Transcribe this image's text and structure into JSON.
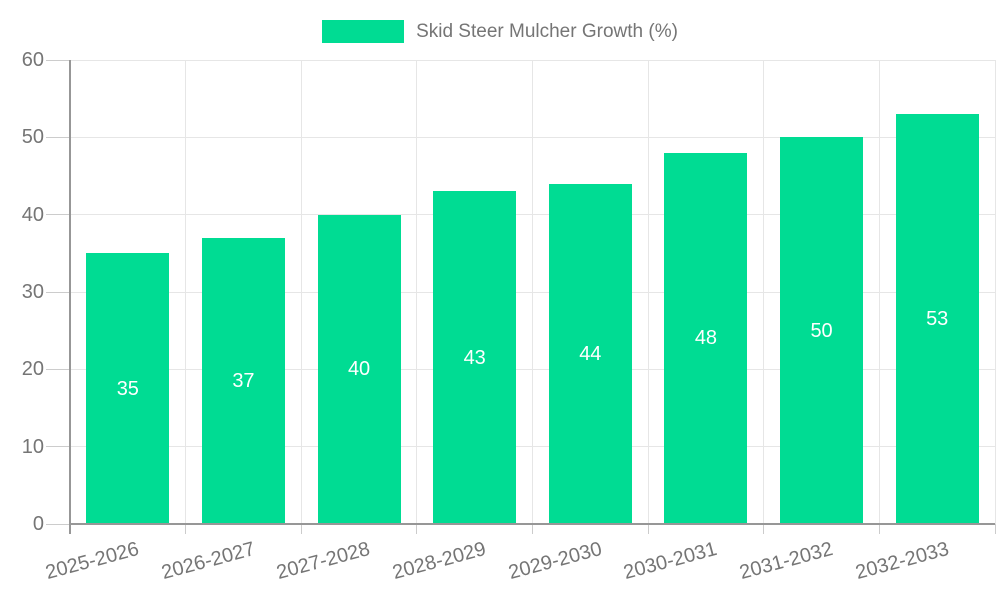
{
  "chart_data": {
    "type": "bar",
    "title": "Skid Steer Mulcher Growth (%)",
    "categories": [
      "2025-2026",
      "2026-2027",
      "2027-2028",
      "2028-2029",
      "2029-2030",
      "2030-2031",
      "2031-2032",
      "2032-2033"
    ],
    "values": [
      35,
      37,
      40,
      43,
      44,
      48,
      50,
      53
    ],
    "xlabel": "",
    "ylabel": "",
    "ylim": [
      0,
      60
    ],
    "yticks": [
      0,
      10,
      20,
      30,
      40,
      50,
      60
    ],
    "grid": "horizontal and vertical gridlines on",
    "legend_position": "top-center",
    "value_label_position": "inside-center",
    "colors": {
      "bar": "#00DC93",
      "axis_text": "#757575",
      "value_text": "#ffffff",
      "gridline": "#e6e6e6",
      "axis_line": "#979797",
      "tick": "#cccccc",
      "background": "#ffffff"
    }
  }
}
